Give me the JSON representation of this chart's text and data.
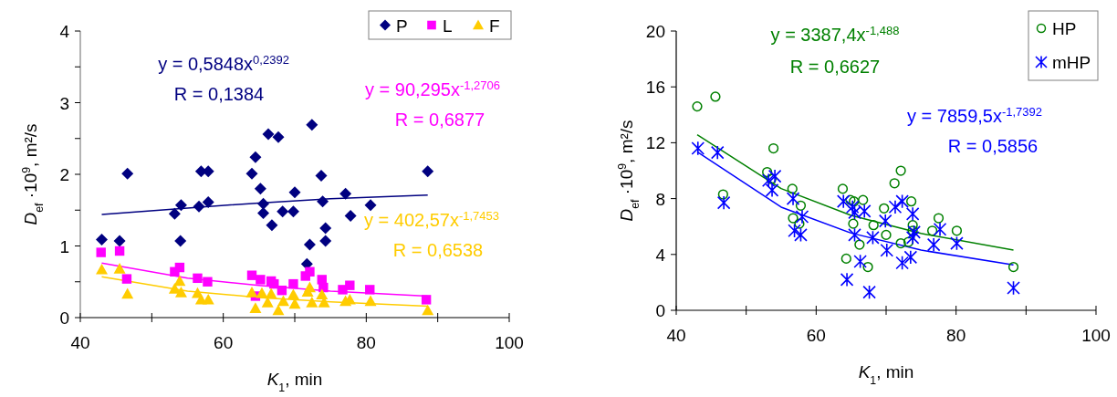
{
  "chart_data": [
    {
      "type": "scatter",
      "xlabel": "K$_{1}$, min",
      "ylabel": "D$_{ef}$ ·10$^{9}$, m²/s",
      "xlim": [
        40,
        100
      ],
      "ylim": [
        0,
        4
      ],
      "xticks": [
        40,
        {
          "value": 50,
          "label": null
        },
        60,
        {
          "value": 70,
          "label": null
        },
        80,
        {
          "value": 90,
          "label": null
        },
        100
      ],
      "yticks": [
        0,
        {
          "value": 0.5,
          "label": null
        },
        1,
        {
          "value": 1.5,
          "label": null
        },
        2,
        {
          "value": 2.5,
          "label": null
        },
        3,
        {
          "value": 3.5,
          "label": null
        },
        4
      ],
      "grid": false,
      "legend": "top right",
      "annotations": [
        "y = 0,5848x$^{0,2392}$",
        "R = 0,1384",
        "y = 90,295x$^{-1,2706}$",
        "R = 0,6877",
        "y = 402,57x$^{-1,7453}$",
        "R = 0,6538"
      ],
      "series": [
        {
          "name": "P",
          "marker": "diamond",
          "color": "#000080",
          "x": [
            43.0,
            45.5,
            46.6,
            53.2,
            54.1,
            54.0,
            56.6,
            56.9,
            57.9,
            57.9,
            64.0,
            64.5,
            65.2,
            65.6,
            65.6,
            66.3,
            66.8,
            67.7,
            68.3,
            69.8,
            70.0,
            72.4,
            72.1,
            71.7,
            73.7,
            73.9,
            74.3,
            74.3,
            77.1,
            77.8,
            80.6,
            88.6
          ],
          "values": [
            1.09,
            1.07,
            2.01,
            1.45,
            1.57,
            1.07,
            1.55,
            2.04,
            2.04,
            1.61,
            2.01,
            2.24,
            1.8,
            1.59,
            1.46,
            2.56,
            1.29,
            2.52,
            1.48,
            1.48,
            1.75,
            2.69,
            1.02,
            0.75,
            1.98,
            1.62,
            1.25,
            1.07,
            1.73,
            1.42,
            1.57,
            2.04
          ]
        },
        {
          "name": "L",
          "marker": "square",
          "color": "#ff00ff",
          "x": [
            42.9,
            45.5,
            46.5,
            53.2,
            53.9,
            56.4,
            57.8,
            64.0,
            65.2,
            66.7,
            68.2,
            64.5,
            67.1,
            69.8,
            71.5,
            72.1,
            73.8,
            74.0,
            76.7,
            77.7,
            80.5,
            88.4
          ],
          "values": [
            0.91,
            0.93,
            0.54,
            0.64,
            0.7,
            0.55,
            0.5,
            0.59,
            0.53,
            0.51,
            0.38,
            0.3,
            0.47,
            0.47,
            0.58,
            0.64,
            0.53,
            0.42,
            0.39,
            0.45,
            0.39,
            0.25
          ]
        },
        {
          "name": "F",
          "marker": "triangle",
          "color": "#ffcc00",
          "x": [
            43.0,
            45.5,
            46.6,
            53.2,
            53.9,
            54.1,
            56.4,
            56.9,
            57.9,
            64.0,
            64.5,
            65.4,
            66.2,
            66.7,
            67.7,
            68.4,
            69.8,
            70.0,
            72.1,
            71.8,
            72.4,
            73.8,
            74.1,
            77.1,
            77.7,
            80.6,
            88.6
          ],
          "values": [
            0.67,
            0.68,
            0.33,
            0.4,
            0.51,
            0.35,
            0.34,
            0.25,
            0.25,
            0.35,
            0.13,
            0.34,
            0.21,
            0.33,
            0.1,
            0.23,
            0.32,
            0.19,
            0.42,
            0.36,
            0.21,
            0.32,
            0.21,
            0.23,
            0.25,
            0.23,
            0.1
          ]
        },
        {
          "type": "line",
          "color": "#000080",
          "x": [
            43,
            55,
            65,
            75,
            88.6
          ],
          "values": [
            1.44,
            1.53,
            1.6,
            1.66,
            1.71
          ]
        },
        {
          "type": "line",
          "color": "#ff00ff",
          "x": [
            43,
            55,
            65,
            75,
            88.6
          ],
          "values": [
            0.76,
            0.55,
            0.45,
            0.37,
            0.3
          ]
        },
        {
          "type": "line",
          "color": "#ffcc00",
          "x": [
            43,
            55,
            65,
            75,
            88.6
          ],
          "values": [
            0.57,
            0.37,
            0.28,
            0.22,
            0.16
          ]
        }
      ]
    },
    {
      "type": "scatter",
      "xlabel": "K$_{1}$, min",
      "ylabel": "D$_{ef}$ ·10$^{9}$, m²/s",
      "xlim": [
        40,
        100
      ],
      "ylim": [
        0,
        20
      ],
      "xticks": [
        40,
        {
          "value": 50,
          "label": null
        },
        60,
        {
          "value": 70,
          "label": null
        },
        80,
        {
          "value": 90,
          "label": null
        },
        100
      ],
      "yticks": [
        0,
        4,
        8,
        12,
        16,
        20
      ],
      "grid": false,
      "legend": "top right",
      "annotations": [
        "y = 3387,4x$^{-1,488}$",
        "R = 0,6627",
        "y = 7859,5x$^{-1,7392}$",
        "R = 0,5856"
      ],
      "series": [
        {
          "name": "HP",
          "marker": "circle",
          "color": "#008000",
          "x": [
            43.0,
            45.6,
            46.7,
            53.0,
            53.9,
            53.6,
            56.6,
            56.7,
            57.8,
            57.6,
            63.8,
            64.3,
            64.9,
            65.4,
            65.3,
            66.2,
            66.7,
            67.4,
            68.2,
            69.7,
            70.0,
            71.2,
            72.1,
            72.1,
            73.2,
            73.6,
            73.8,
            73.8,
            76.6,
            77.5,
            80.1,
            88.2
          ],
          "values": [
            14.6,
            15.3,
            8.3,
            9.9,
            11.6,
            9.4,
            8.7,
            6.6,
            7.5,
            6.2,
            8.7,
            3.7,
            7.9,
            7.8,
            6.2,
            4.7,
            7.9,
            3.1,
            6.1,
            7.3,
            5.4,
            9.1,
            10.0,
            4.8,
            4.9,
            7.8,
            6.1,
            5.7,
            5.7,
            6.6,
            5.7,
            3.1
          ]
        },
        {
          "name": "mHP",
          "marker": "cross",
          "color": "#0000ff",
          "x": [
            43.1,
            45.9,
            46.8,
            53.2,
            53.7,
            54.1,
            56.7,
            56.9,
            57.8,
            58.0,
            63.9,
            64.4,
            65.2,
            65.5,
            65.5,
            66.3,
            66.9,
            67.6,
            68.1,
            69.9,
            70.1,
            71.3,
            72.3,
            72.3,
            73.5,
            73.8,
            74.0,
            73.8,
            76.8,
            77.7,
            80.1,
            88.2
          ],
          "values": [
            11.6,
            11.3,
            7.7,
            9.3,
            8.6,
            9.6,
            8.0,
            5.7,
            5.4,
            6.7,
            7.8,
            2.2,
            7.4,
            7.0,
            5.4,
            3.5,
            7.1,
            1.3,
            5.2,
            6.4,
            4.3,
            7.4,
            7.8,
            3.4,
            3.8,
            6.9,
            5.6,
            5.2,
            4.7,
            5.8,
            4.8,
            1.6
          ]
        },
        {
          "type": "line",
          "color": "#008000",
          "x": [
            43,
            55,
            65,
            75,
            88.2
          ],
          "values": [
            12.58,
            8.72,
            6.8,
            5.5,
            4.32
          ]
        },
        {
          "type": "line",
          "color": "#0000ff",
          "x": [
            43,
            55,
            65,
            75,
            88.2
          ],
          "values": [
            11.34,
            7.39,
            5.53,
            4.31,
            3.25
          ]
        }
      ]
    }
  ]
}
